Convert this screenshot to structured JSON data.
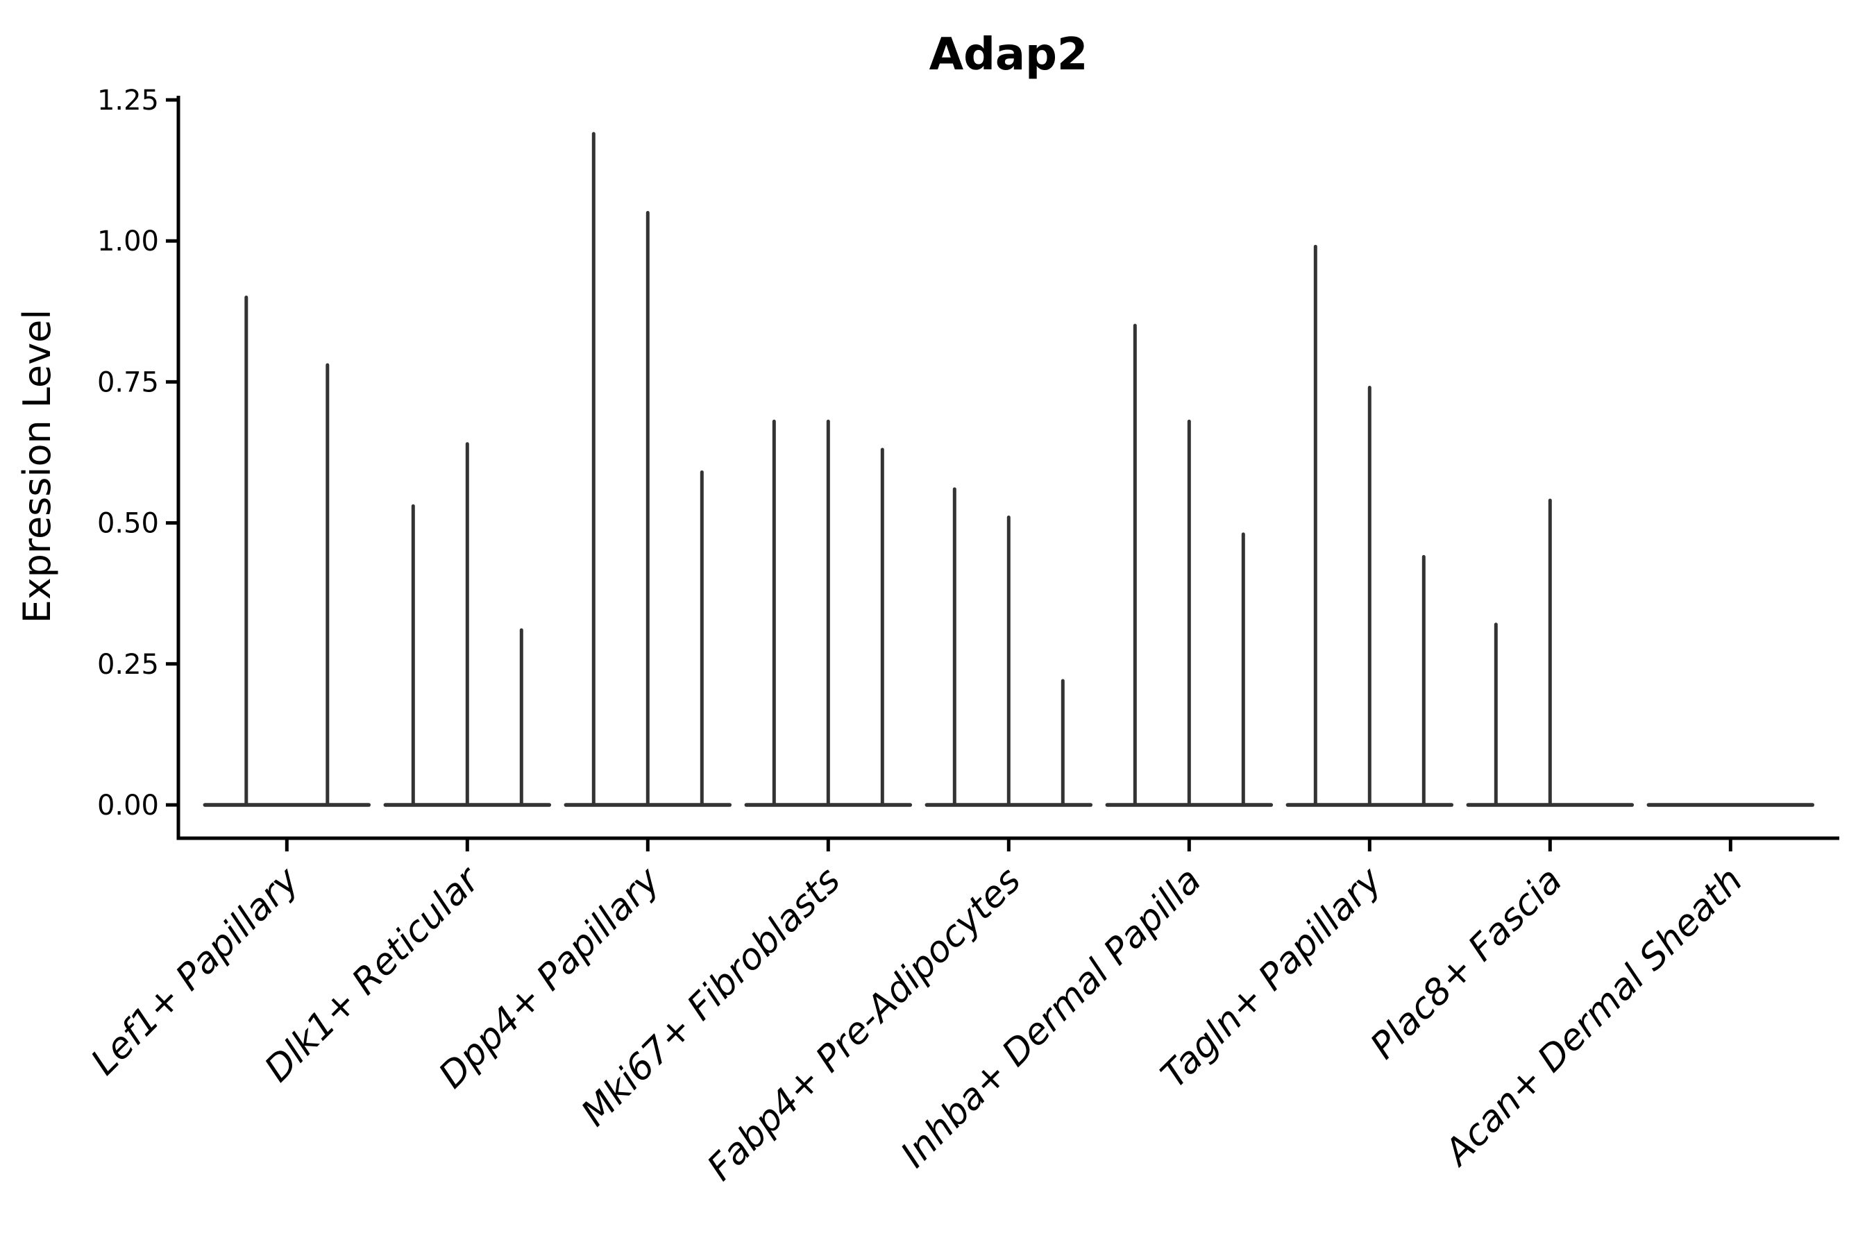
{
  "chart_data": {
    "type": "violin",
    "title": "Adap2",
    "ylabel": "Expression Level",
    "xlabel": "",
    "ylim": [
      0,
      1.25
    ],
    "ytick_labels": [
      "0.00",
      "0.25",
      "0.50",
      "0.75",
      "1.00",
      "1.25"
    ],
    "ytick_values": [
      0,
      0.25,
      0.5,
      0.75,
      1.0,
      1.25
    ],
    "grid": false,
    "legend": false,
    "axis_color": "#000000",
    "violin_color": "#333333",
    "categories": [
      {
        "label": "Lef1+ Papillary",
        "spikes": [
          {
            "pos": -0.225,
            "value": 0.9
          },
          {
            "pos": 0.225,
            "value": 0.78
          }
        ]
      },
      {
        "label": "Dlk1+ Reticular",
        "spikes": [
          {
            "pos": -0.3,
            "value": 0.53
          },
          {
            "pos": 0.0,
            "value": 0.64
          },
          {
            "pos": 0.3,
            "value": 0.31
          }
        ]
      },
      {
        "label": "Dpp4+ Papillary",
        "spikes": [
          {
            "pos": -0.3,
            "value": 1.19
          },
          {
            "pos": 0.0,
            "value": 1.05
          },
          {
            "pos": 0.3,
            "value": 0.59
          }
        ]
      },
      {
        "label": "Mki67+ Fibroblasts",
        "spikes": [
          {
            "pos": -0.3,
            "value": 0.68
          },
          {
            "pos": 0.0,
            "value": 0.68
          },
          {
            "pos": 0.3,
            "value": 0.63
          }
        ]
      },
      {
        "label": "Fabp4+ Pre-Adipocytes",
        "spikes": [
          {
            "pos": -0.3,
            "value": 0.56
          },
          {
            "pos": 0.0,
            "value": 0.51
          },
          {
            "pos": 0.3,
            "value": 0.22
          }
        ]
      },
      {
        "label": "Inhba+ Dermal Papilla",
        "spikes": [
          {
            "pos": -0.3,
            "value": 0.85
          },
          {
            "pos": 0.0,
            "value": 0.68
          },
          {
            "pos": 0.3,
            "value": 0.48
          }
        ]
      },
      {
        "label": "Tagln+ Papillary",
        "spikes": [
          {
            "pos": -0.3,
            "value": 0.99
          },
          {
            "pos": 0.0,
            "value": 0.74
          },
          {
            "pos": 0.3,
            "value": 0.44
          }
        ]
      },
      {
        "label": "Plac8+ Fascia",
        "spikes": [
          {
            "pos": -0.3,
            "value": 0.32
          },
          {
            "pos": 0.0,
            "value": 0.54
          }
        ]
      },
      {
        "label": "Acan+ Dermal Sheath",
        "spikes": []
      }
    ]
  }
}
